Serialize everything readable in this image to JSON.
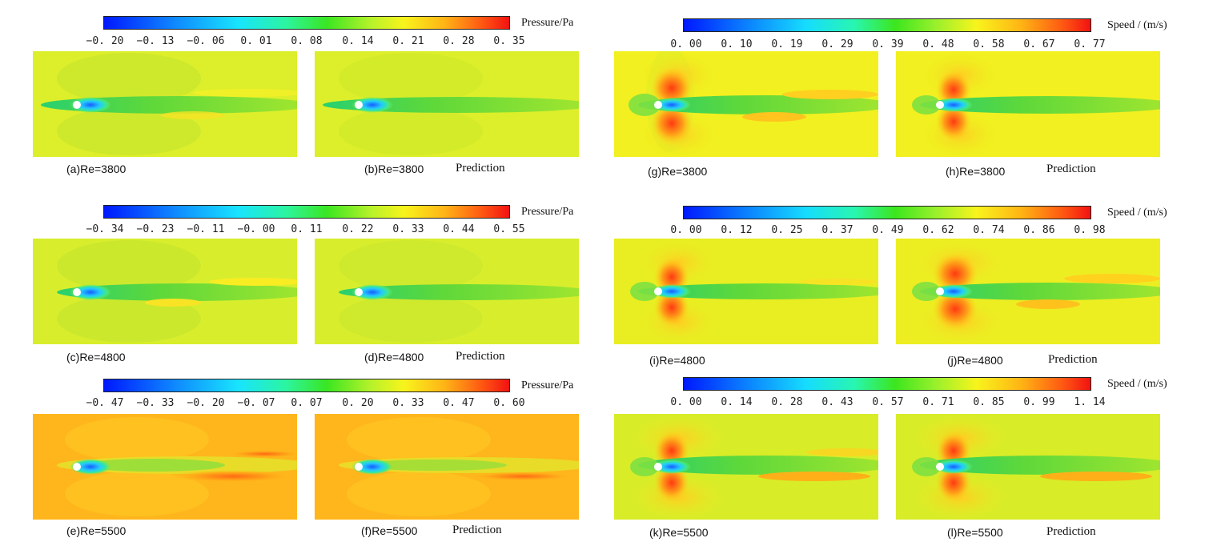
{
  "colorbars": [
    {
      "title": "Pressure/Pa",
      "ticks": [
        "−0. 20",
        "−0. 13",
        "−0. 06",
        "0. 01",
        "0. 08",
        "0. 14",
        "0. 21",
        "0. 28",
        "0. 35"
      ]
    },
    {
      "title": "Speed / (m/s)",
      "ticks": [
        "0. 00",
        "0. 10",
        "0. 19",
        "0. 29",
        "0. 39",
        "0. 48",
        "0. 58",
        "0. 67",
        "0. 77"
      ]
    },
    {
      "title": "Pressure/Pa",
      "ticks": [
        "−0. 34",
        "−0. 23",
        "−0. 11",
        "−0. 00",
        "0. 11",
        "0. 22",
        "0. 33",
        "0. 44",
        "0. 55"
      ]
    },
    {
      "title": "Speed / (m/s)",
      "ticks": [
        "0. 00",
        "0. 12",
        "0. 25",
        "0. 37",
        "0. 49",
        "0. 62",
        "0. 74",
        "0. 86",
        "0. 98"
      ]
    },
    {
      "title": "Pressure/Pa",
      "ticks": [
        "−0. 47",
        "−0. 33",
        "−0. 20",
        "−0. 07",
        "0. 07",
        "0. 20",
        "0. 33",
        "0. 47",
        "0. 60"
      ]
    },
    {
      "title": "Speed / (m/s)",
      "ticks": [
        "0. 00",
        "0. 14",
        "0. 28",
        "0. 43",
        "0. 57",
        "0. 71",
        "0. 85",
        "0. 99",
        "1. 14"
      ]
    }
  ],
  "captions": {
    "a": "(a)Re=3800",
    "b": "(b)Re=3800",
    "c": "(c)Re=4800",
    "d": "(d)Re=4800",
    "e": "(e)Re=5500",
    "f": "(f)Re=5500",
    "g": "(g)Re=3800",
    "h": "(h)Re=3800",
    "i": "(i)Re=4800",
    "j": "(j)Re=4800",
    "k": "(k)Re=5500",
    "l": "(l)Re=5500"
  },
  "prediction_label": "Prediction"
}
